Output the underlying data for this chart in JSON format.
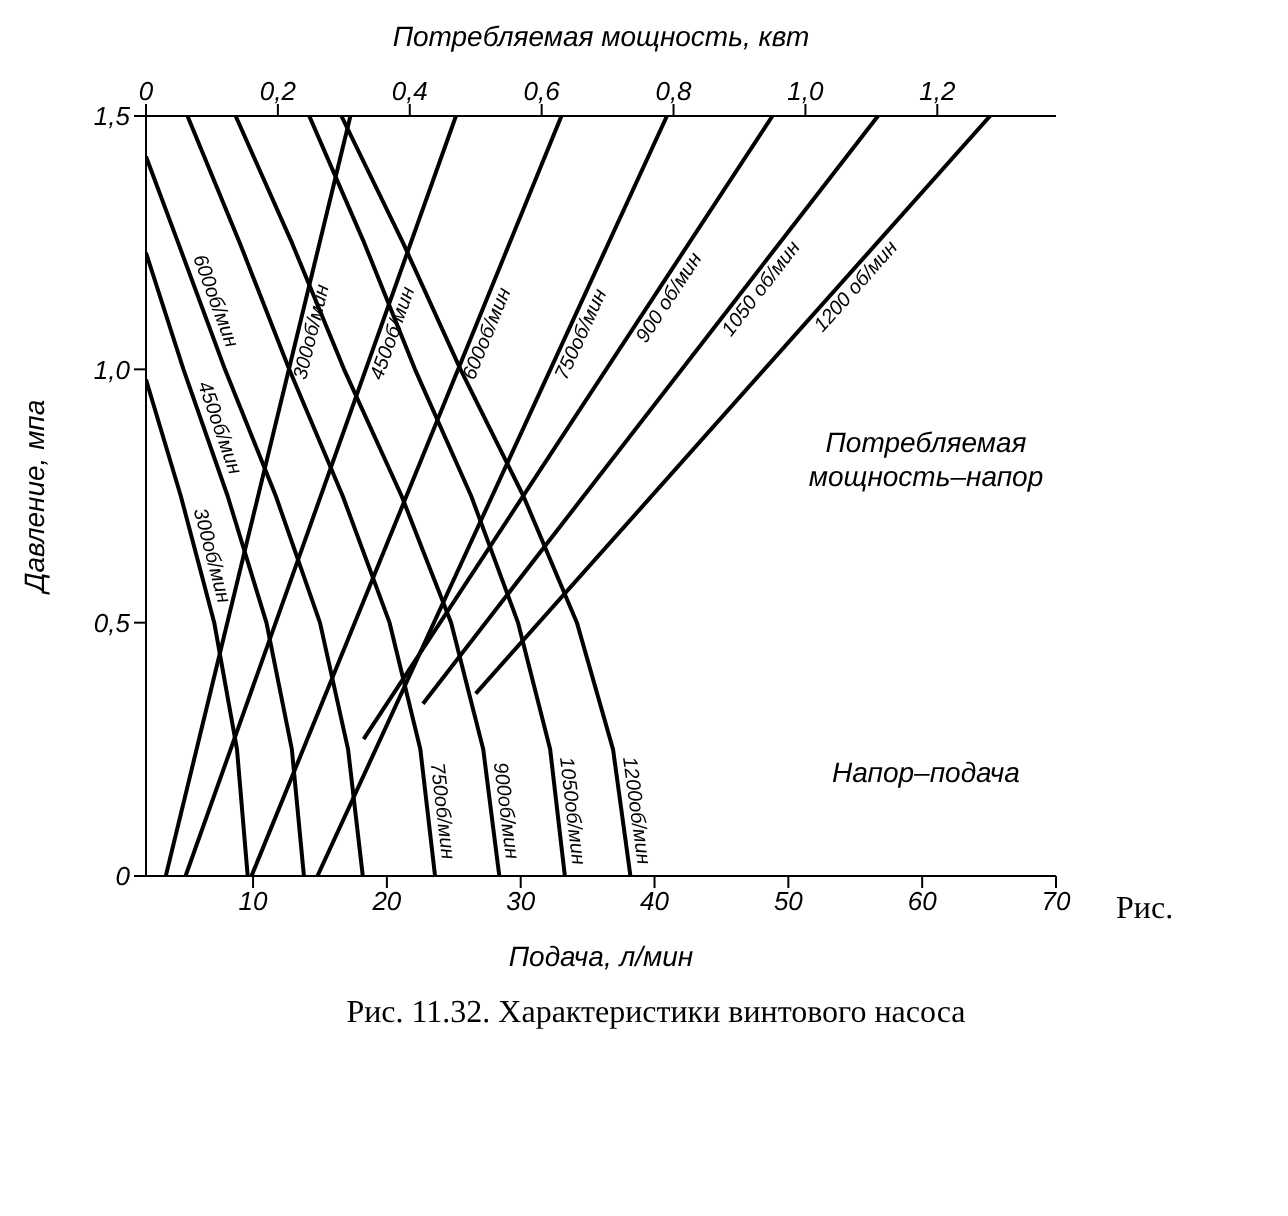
{
  "chart_data": {
    "type": "line",
    "xlabel": "Подача, л/мин",
    "ylabel": "Давление, мпа",
    "x2label": "Потребляемая мощность, квт",
    "xlim": [
      2,
      70
    ],
    "xticks": [
      10,
      20,
      30,
      40,
      50,
      60,
      70
    ],
    "x2lim": [
      0,
      1.38
    ],
    "x2ticks": [
      0,
      {
        "value": 0.2,
        "label": "0,2"
      },
      {
        "value": 0.4,
        "label": "0,4"
      },
      {
        "value": 0.6,
        "label": "0,6"
      },
      {
        "value": 0.8,
        "label": "0,8"
      },
      {
        "value": 1.0,
        "label": "1,0"
      },
      {
        "value": 1.2,
        "label": "1,2"
      }
    ],
    "ylim": [
      0,
      1.5
    ],
    "yticks": [
      0,
      {
        "value": 0.5,
        "label": "0,5"
      },
      {
        "value": 1.0,
        "label": "1,0"
      },
      {
        "value": 1.5,
        "label": "1,5"
      }
    ],
    "marker": "none",
    "series": [
      {
        "name": "300об/мин",
        "color": "#000000",
        "x": [
          9.6,
          8.8,
          7.1,
          4.6,
          2.0
        ],
        "values": [
          0,
          0.25,
          0.5,
          0.75,
          0.98
        ]
      },
      {
        "name": "450об/мин",
        "color": "#000000",
        "x": [
          13.8,
          12.9,
          11.0,
          8.1,
          4.8,
          2.0
        ],
        "values": [
          0,
          0.25,
          0.5,
          0.75,
          1.0,
          1.23
        ]
      },
      {
        "name": "600об/мин",
        "color": "#000000",
        "x": [
          18.2,
          17.1,
          15.0,
          11.7,
          7.9,
          4.4,
          2.0
        ],
        "values": [
          0,
          0.25,
          0.5,
          0.75,
          1.0,
          1.25,
          1.42
        ]
      },
      {
        "name": "750об/мин",
        "color": "#000000",
        "x": [
          23.6,
          22.5,
          20.2,
          16.7,
          12.7,
          9.0,
          5.1
        ],
        "values": [
          0,
          0.25,
          0.5,
          0.75,
          1.0,
          1.25,
          1.5
        ]
      },
      {
        "name": "900об/мин",
        "color": "#000000",
        "x": [
          28.4,
          27.2,
          24.8,
          21.1,
          16.8,
          12.9,
          8.7
        ],
        "values": [
          0,
          0.25,
          0.5,
          0.75,
          1.0,
          1.25,
          1.5
        ]
      },
      {
        "name": "1050об/мин",
        "color": "#000000",
        "x": [
          33.3,
          32.2,
          29.8,
          26.3,
          22.1,
          18.3,
          14.2
        ],
        "values": [
          0,
          0.25,
          0.5,
          0.75,
          1.0,
          1.25,
          1.5
        ]
      },
      {
        "name": "1200об/мин",
        "color": "#000000",
        "x": [
          38.2,
          36.9,
          34.2,
          30.2,
          25.5,
          21.2,
          16.6
        ],
        "values": [
          0,
          0.25,
          0.5,
          0.75,
          1.0,
          1.25,
          1.5
        ]
      },
      {
        "name": "300об/мин",
        "color": "#000000",
        "axis": "x2",
        "x": [
          0.03,
          0.31
        ],
        "values": [
          0,
          1.5
        ]
      },
      {
        "name": "450об/мин",
        "color": "#000000",
        "axis": "x2",
        "x": [
          0.06,
          0.47
        ],
        "values": [
          0,
          1.5
        ]
      },
      {
        "name": "600об/мин",
        "color": "#000000",
        "axis": "x2",
        "x": [
          0.16,
          0.63
        ],
        "values": [
          0,
          1.5
        ]
      },
      {
        "name": "750об/мин",
        "color": "#000000",
        "axis": "x2",
        "x": [
          0.26,
          0.79
        ],
        "values": [
          0,
          1.5
        ]
      },
      {
        "name": "900 об/мин",
        "color": "#000000",
        "axis": "x2",
        "x": [
          0.33,
          0.95
        ],
        "values": [
          0.27,
          1.5
        ]
      },
      {
        "name": "1050 об/мин",
        "color": "#000000",
        "axis": "x2",
        "x": [
          0.42,
          1.11
        ],
        "values": [
          0.34,
          1.5
        ]
      },
      {
        "name": "1200 об/мин",
        "color": "#000000",
        "axis": "x2",
        "x": [
          0.5,
          1.28
        ],
        "values": [
          0.36,
          1.5
        ]
      }
    ],
    "annotations": [
      "Потребляемая мощность–напор",
      "Напор–подача",
      "Рис.",
      "Рис. 11.32. Характеристики винтового насоса"
    ]
  }
}
